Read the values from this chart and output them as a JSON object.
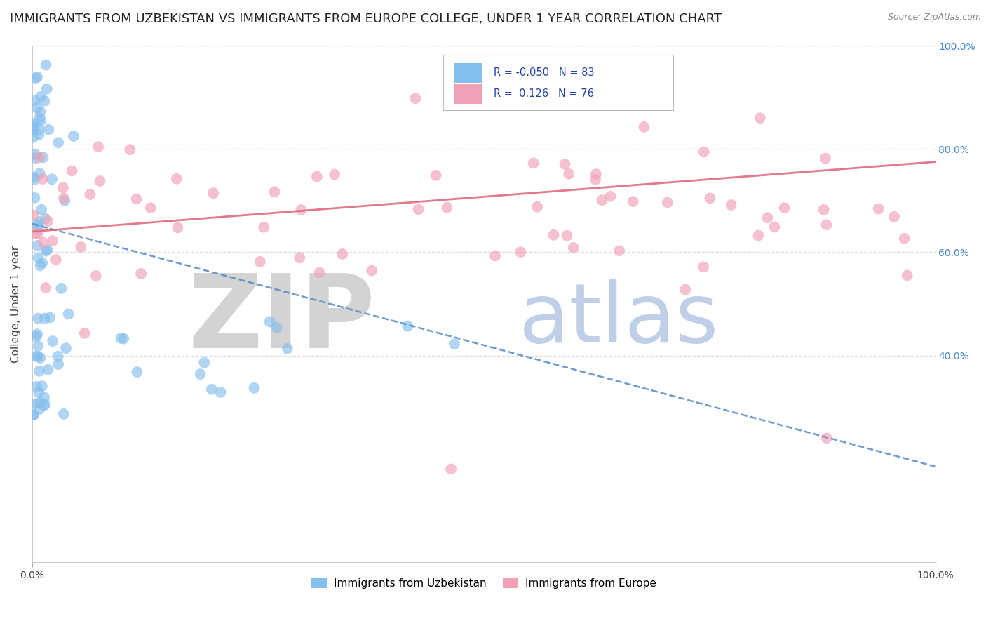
{
  "title": "IMMIGRANTS FROM UZBEKISTAN VS IMMIGRANTS FROM EUROPE COLLEGE, UNDER 1 YEAR CORRELATION CHART",
  "source": "Source: ZipAtlas.com",
  "ylabel": "College, Under 1 year",
  "x_min": 0.0,
  "x_max": 1.0,
  "y_min": 0.0,
  "y_max": 1.0,
  "color_uzbekistan": "#85BFED",
  "color_europe": "#F2A0B5",
  "color_trendline_uzbekistan": "#5588CC",
  "color_trendline_europe": "#E06880",
  "watermark_zip": "ZIP",
  "watermark_atlas": "atlas",
  "watermark_color_zip": "#CCCCCC",
  "watermark_color_atlas": "#AABFE0",
  "background_color": "#FFFFFF",
  "grid_color": "#DDDDDD",
  "title_fontsize": 13,
  "axis_label_fontsize": 11,
  "tick_fontsize": 10,
  "right_tick_color": "#4488CC",
  "legend_color": "#2244AA",
  "n_uzbekistan": 83,
  "n_europe": 76,
  "r_uzbekistan": -0.05,
  "r_europe": 0.126,
  "uz_trend_x0": 0.0,
  "uz_trend_y0": 0.655,
  "uz_trend_x1": 1.0,
  "uz_trend_y1": 0.185,
  "eu_trend_x0": 0.0,
  "eu_trend_y0": 0.64,
  "eu_trend_x1": 1.0,
  "eu_trend_y1": 0.775
}
